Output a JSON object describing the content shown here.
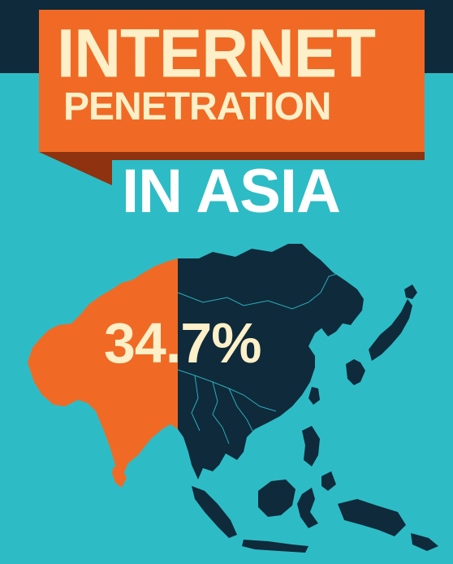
{
  "title": {
    "line1": "INTERNET",
    "line2": "PENETRATION",
    "line3": "IN ASIA"
  },
  "stat": {
    "value": "34.7%",
    "fraction": 0.347
  },
  "colors": {
    "background": "#2dbcc6",
    "top_strip": "#0f2a3b",
    "banner": "#f06a25",
    "banner_shadow": "#8f3210",
    "map_highlight": "#f06a25",
    "map_rest": "#0f2a3b",
    "title_text": "#fdf0c8",
    "subtitle_text": "#ffffff"
  }
}
